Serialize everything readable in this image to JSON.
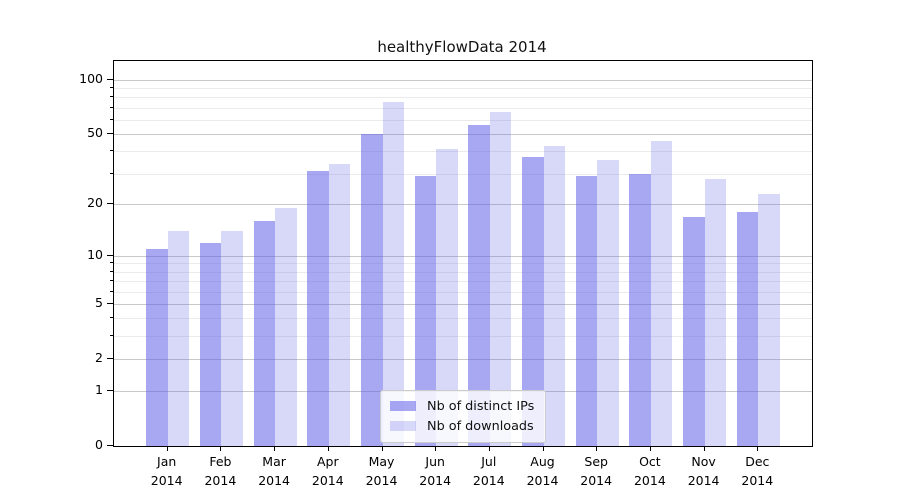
{
  "title": "healthyFlowData 2014",
  "legend": {
    "items": [
      {
        "label": "Nb of distinct IPs"
      },
      {
        "label": "Nb of downloads"
      }
    ]
  },
  "colors": {
    "bar_distinct_ips": "rgba(90,90,230,0.53)",
    "bar_downloads": "rgba(90,90,230,0.24)",
    "grid_major": "#c9c9c9",
    "grid_minor": "#ebebeb",
    "spine": "#000000",
    "text": "#000000",
    "legend_border": "#cccccc",
    "legend_background": "rgba(255,255,255,0.8)"
  },
  "chart_data": {
    "type": "bar",
    "title": "healthyFlowData 2014",
    "categories": [
      "Jan 2014",
      "Feb 2014",
      "Mar 2014",
      "Apr 2014",
      "May 2014",
      "Jun 2014",
      "Jul 2014",
      "Aug 2014",
      "Sep 2014",
      "Oct 2014",
      "Nov 2014",
      "Dec 2014"
    ],
    "series": [
      {
        "name": "Nb of distinct IPs",
        "color": "rgba(90,90,230,0.53)",
        "values": [
          11,
          12,
          16,
          31,
          50,
          29,
          56,
          37,
          29,
          30,
          17,
          18
        ]
      },
      {
        "name": "Nb of downloads",
        "color": "rgba(90,90,230,0.24)",
        "values": [
          14,
          14,
          19,
          34,
          75,
          41,
          66,
          43,
          36,
          46,
          28,
          23
        ]
      }
    ],
    "xlabel": "",
    "ylabel": "",
    "yscale": "log1p",
    "ylim": [
      0,
      127
    ],
    "y_major_ticks": [
      0,
      1,
      2,
      5,
      10,
      20,
      50,
      100
    ],
    "y_minor_ticks": [
      3,
      4,
      6,
      7,
      8,
      9,
      30,
      40,
      60,
      70,
      80,
      90
    ],
    "grid": true,
    "legend_position": "lower center inside"
  }
}
